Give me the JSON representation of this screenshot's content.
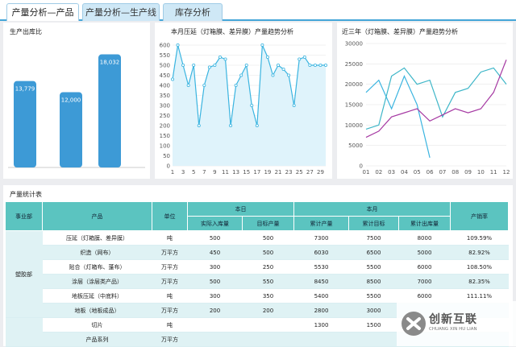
{
  "tabs": [
    {
      "label": "产量分析—产品"
    },
    {
      "label": "产量分析—生产线"
    },
    {
      "label": "库存分析"
    }
  ],
  "panels": {
    "bar_title": "生产出库比",
    "line1_title": "本月压延（灯箱膜、差异膜）产量趋势分析",
    "line2_title": "近三年（灯箱膜、差异膜）产量趋势分析",
    "table_title": "产量统计表"
  },
  "chart_data": [
    {
      "type": "bar",
      "categories": [
        "",
        "",
        ""
      ],
      "values": [
        13779,
        12000,
        18032
      ],
      "data_labels": [
        "13,779",
        "12,000",
        "18,032"
      ],
      "colors": [
        "#3d9ad6"
      ],
      "ylim": [
        0,
        19000
      ]
    },
    {
      "type": "area",
      "x": [
        1,
        2,
        3,
        4,
        5,
        6,
        7,
        8,
        9,
        10,
        11,
        12,
        13,
        14,
        15,
        16,
        17,
        18,
        19,
        20,
        21,
        22,
        23,
        24,
        25,
        26,
        27,
        28,
        29,
        30
      ],
      "values": [
        430,
        600,
        500,
        400,
        500,
        200,
        400,
        490,
        500,
        540,
        530,
        200,
        400,
        450,
        500,
        300,
        200,
        600,
        540,
        450,
        500,
        480,
        450,
        300,
        530,
        540,
        500,
        500,
        500,
        500
      ],
      "x_ticks": [
        "1",
        "3",
        "5",
        "7",
        "9",
        "11",
        "13",
        "15",
        "17",
        "19",
        "21",
        "23",
        "25",
        "27",
        "29"
      ],
      "y_ticks": [
        "0",
        "50",
        "100",
        "150",
        "200",
        "250",
        "300",
        "350",
        "400",
        "450",
        "500",
        "550",
        "600"
      ],
      "ylim": [
        0,
        600
      ],
      "grid": true,
      "colors": [
        "#3ab4e0"
      ]
    },
    {
      "type": "line",
      "categories": [
        "01",
        "02",
        "03",
        "04",
        "05",
        "06",
        "07",
        "08",
        "09",
        "10",
        "11",
        "12"
      ],
      "y_ticks": [
        "0",
        "5000",
        "10000",
        "15000",
        "20000",
        "25000",
        "30000"
      ],
      "ylim": [
        0,
        30000
      ],
      "grid": true,
      "series": [
        {
          "values": [
            18000,
            21000,
            14000,
            22000,
            15000,
            2000,
            null,
            null,
            null,
            null,
            null,
            null
          ],
          "color": "#3ab4e0"
        },
        {
          "values": [
            9000,
            10000,
            22000,
            24000,
            20000,
            21000,
            12000,
            18000,
            19000,
            23000,
            24000,
            20000
          ],
          "color": "#3eb6c8"
        },
        {
          "values": [
            7000,
            8500,
            12000,
            13000,
            14000,
            11000,
            12500,
            14000,
            13000,
            14000,
            18000,
            26000
          ],
          "color": "#a63aa3"
        }
      ]
    }
  ],
  "table": {
    "headers": {
      "dept": "事业部",
      "product": "产品",
      "unit": "单位",
      "today": "本日",
      "month": "本月",
      "rate": "产销率",
      "actual_in": "实际入库量",
      "target": "目标产量",
      "cum_output": "累计产量",
      "cum_target": "累计目标",
      "cum_out": "累计出库量"
    },
    "dept_name": "塑胶部",
    "rows": [
      {
        "product": "压延（灯箱膜、差异膜）",
        "unit": "吨",
        "actual": "500",
        "target": "500",
        "cum": "7300",
        "cum_target": "7500",
        "cum_out": "8000",
        "rate": "109.59%"
      },
      {
        "product": "织造（网布）",
        "unit": "万平方",
        "actual": "450",
        "target": "500",
        "cum": "6030",
        "cum_target": "6500",
        "cum_out": "5000",
        "rate": "82.92%"
      },
      {
        "product": "贴合（灯箱布、蓬布）",
        "unit": "万平方",
        "actual": "300",
        "target": "250",
        "cum": "5530",
        "cum_target": "5500",
        "cum_out": "6000",
        "rate": "108.50%"
      },
      {
        "product": "涂层（涂层类产品）",
        "unit": "万平方",
        "actual": "500",
        "target": "550",
        "cum": "8450",
        "cum_target": "8500",
        "cum_out": "7000",
        "rate": "82.35%"
      },
      {
        "product": "地板压延（中底料）",
        "unit": "吨",
        "actual": "300",
        "target": "350",
        "cum": "5400",
        "cum_target": "5500",
        "cum_out": "6000",
        "rate": "111.11%"
      },
      {
        "product": "地板（地板成品）",
        "unit": "万平方",
        "actual": "200",
        "target": "200",
        "cum": "2800",
        "cum_target": "3000",
        "cum_out": "",
        "rate": ""
      },
      {
        "product": "切片",
        "unit": "吨",
        "actual": "",
        "target": "",
        "cum": "1300",
        "cum_target": "1500",
        "cum_out": "",
        "rate": ""
      },
      {
        "product": "产品系列",
        "unit": "万平方",
        "actual": "",
        "target": "",
        "cum": "",
        "cum_target": "",
        "cum_out": "",
        "rate": ""
      }
    ]
  },
  "watermark": {
    "text": "创新互联",
    "sub": "CHUANG XIN HU LIAN"
  }
}
